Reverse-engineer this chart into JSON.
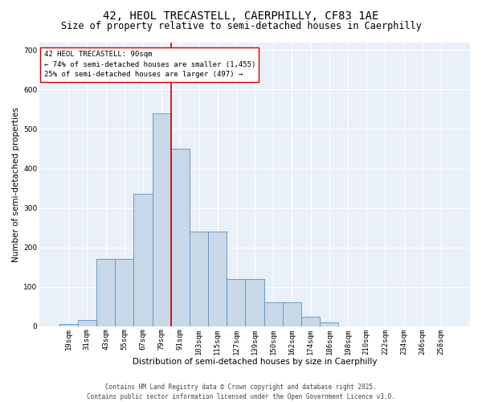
{
  "title_line1": "42, HEOL TRECASTELL, CAERPHILLY, CF83 1AE",
  "title_line2": "Size of property relative to semi-detached houses in Caerphilly",
  "xlabel": "Distribution of semi-detached houses by size in Caerphilly",
  "ylabel": "Number of semi-detached properties",
  "categories": [
    "19sqm",
    "31sqm",
    "43sqm",
    "55sqm",
    "67sqm",
    "79sqm",
    "91sqm",
    "103sqm",
    "115sqm",
    "127sqm",
    "139sqm",
    "150sqm",
    "162sqm",
    "174sqm",
    "186sqm",
    "198sqm",
    "210sqm",
    "222sqm",
    "234sqm",
    "246sqm",
    "258sqm"
  ],
  "values": [
    5,
    15,
    170,
    170,
    335,
    540,
    450,
    240,
    240,
    120,
    120,
    60,
    60,
    25,
    10,
    0,
    0,
    0,
    0,
    0,
    0
  ],
  "bar_color": "#c8d8e8",
  "bar_edge_color": "#5a8fc0",
  "vline_pos": 6,
  "vline_color": "#cc0000",
  "annotation_title": "42 HEOL TRECASTELL: 90sqm",
  "annotation_line1": "← 74% of semi-detached houses are smaller (1,455)",
  "annotation_line2": "25% of semi-detached houses are larger (497) →",
  "annotation_box_color": "#ffffff",
  "annotation_edge_color": "#cc0000",
  "ylim": [
    0,
    720
  ],
  "yticks": [
    0,
    100,
    200,
    300,
    400,
    500,
    600,
    700
  ],
  "bg_color": "#eaf0f8",
  "footer_line1": "Contains HM Land Registry data © Crown copyright and database right 2025.",
  "footer_line2": "Contains public sector information licensed under the Open Government Licence v3.0.",
  "title_fontsize": 10,
  "subtitle_fontsize": 8.5,
  "axis_label_fontsize": 7.5,
  "tick_fontsize": 6.5,
  "annotation_fontsize": 6.5,
  "footer_fontsize": 5.5
}
